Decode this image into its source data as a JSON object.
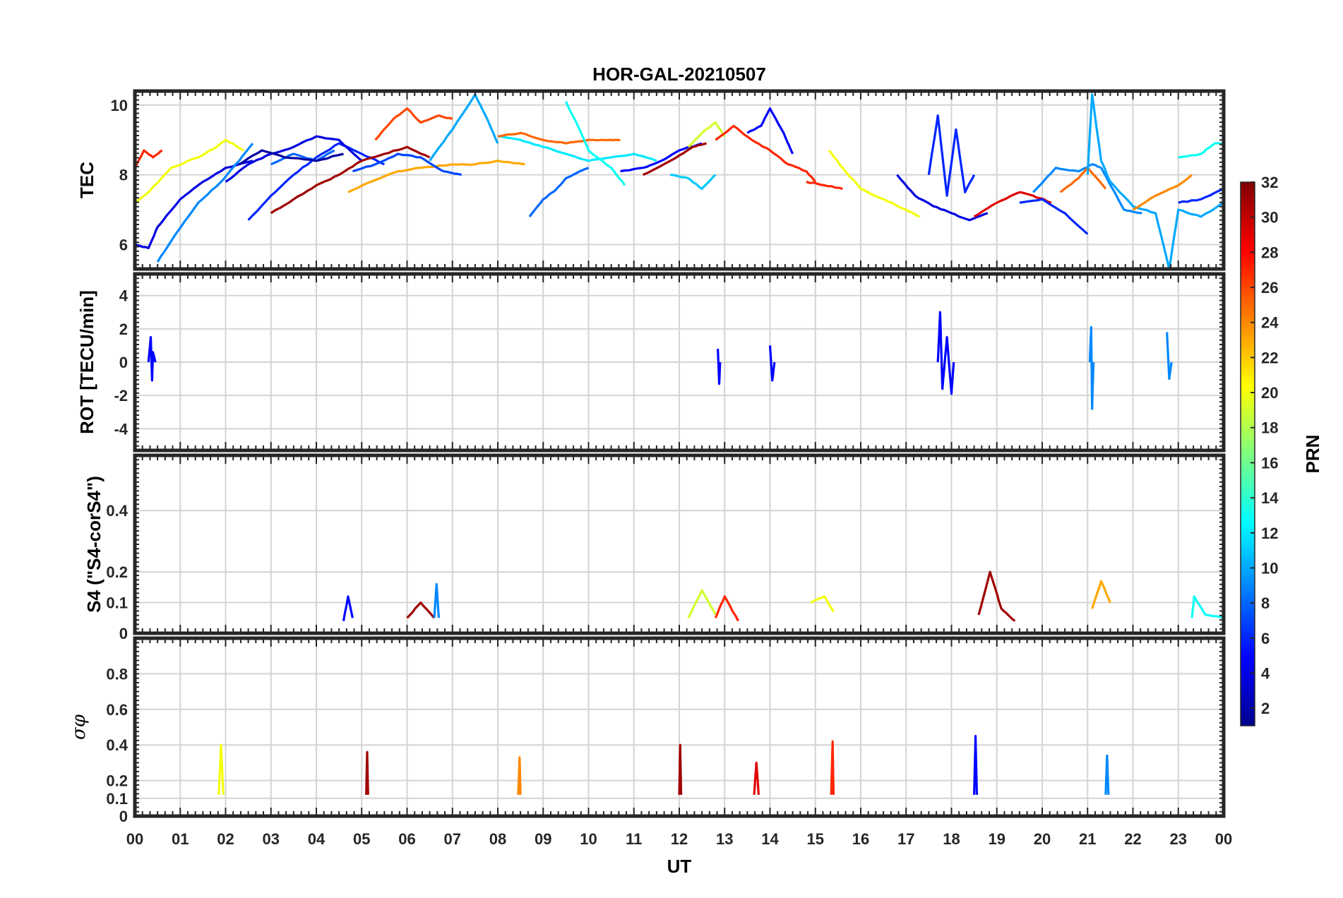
{
  "chart_data": {
    "type": "line",
    "title": "HOR-GAL-20210507",
    "xlabel": "UT",
    "xlim": [
      0,
      24
    ],
    "x_tick_labels": [
      "00",
      "01",
      "02",
      "03",
      "04",
      "05",
      "06",
      "07",
      "08",
      "09",
      "10",
      "11",
      "12",
      "13",
      "14",
      "15",
      "16",
      "17",
      "18",
      "19",
      "20",
      "21",
      "22",
      "23",
      "00"
    ],
    "colorbar": {
      "label": "PRN",
      "range": [
        1,
        32
      ],
      "tick_labels": [
        "2",
        "4",
        "6",
        "8",
        "10",
        "12",
        "14",
        "16",
        "18",
        "20",
        "22",
        "24",
        "26",
        "28",
        "30",
        "32"
      ],
      "colormap": "jet"
    },
    "panels": [
      {
        "ylabel": "TEC",
        "ylim": [
          5.3,
          10.4
        ],
        "y_tick_labels": [
          "6",
          "8",
          "10"
        ],
        "series": [
          {
            "prn": 27,
            "x": [
              0,
              0.2,
              0.4,
              0.6
            ],
            "y": [
              8.2,
              8.7,
              8.5,
              8.7
            ]
          },
          {
            "prn": 20,
            "x": [
              0,
              0.3,
              0.8,
              1.4,
              1.8,
              2.0,
              2.4
            ],
            "y": [
              7.2,
              7.5,
              8.2,
              8.5,
              8.8,
              9.0,
              8.7
            ]
          },
          {
            "prn": 4,
            "x": [
              0,
              0.3,
              0.5,
              1.0,
              1.5,
              2.0,
              2.6
            ],
            "y": [
              6.0,
              5.9,
              6.5,
              7.3,
              7.8,
              8.2,
              8.4
            ]
          },
          {
            "prn": 9,
            "x": [
              0.5,
              0.9,
              1.4,
              1.9,
              2.3,
              2.6
            ],
            "y": [
              5.5,
              6.3,
              7.2,
              7.8,
              8.4,
              8.9
            ]
          },
          {
            "prn": 6,
            "x": [
              2.5,
              3.0,
              3.5,
              4.0,
              4.5,
              5.0,
              5.5
            ],
            "y": [
              6.7,
              7.4,
              8.0,
              8.5,
              8.9,
              8.6,
              8.3
            ]
          },
          {
            "prn": 4,
            "x": [
              2.0,
              2.5,
              3.0,
              3.5,
              4.0,
              4.5,
              5.0
            ],
            "y": [
              7.8,
              8.3,
              8.6,
              8.8,
              9.1,
              9.0,
              8.4
            ]
          },
          {
            "prn": 31,
            "x": [
              3.0,
              3.5,
              4.0,
              4.5,
              5.0,
              5.5,
              6.0,
              6.5
            ],
            "y": [
              6.9,
              7.3,
              7.7,
              8.0,
              8.4,
              8.6,
              8.8,
              8.5
            ]
          },
          {
            "prn": 8,
            "x": [
              3.0,
              3.5,
              4.0,
              4.4
            ],
            "y": [
              8.3,
              8.6,
              8.4,
              8.7
            ]
          },
          {
            "prn": 2,
            "x": [
              2.3,
              2.8,
              3.3,
              4.0,
              4.6
            ],
            "y": [
              8.3,
              8.7,
              8.5,
              8.4,
              8.6
            ]
          },
          {
            "prn": 23,
            "x": [
              4.7,
              5.2,
              5.8,
              6.3,
              7.0,
              7.5,
              8.0,
              8.6
            ],
            "y": [
              7.5,
              7.8,
              8.1,
              8.2,
              8.3,
              8.3,
              8.4,
              8.3
            ]
          },
          {
            "prn": 26,
            "x": [
              5.3,
              5.7,
              6.0,
              6.3,
              6.7,
              7.0
            ],
            "y": [
              9.0,
              9.6,
              9.9,
              9.5,
              9.7,
              9.6
            ]
          },
          {
            "prn": 7,
            "x": [
              4.8,
              5.3,
              5.8,
              6.3,
              6.8,
              7.2
            ],
            "y": [
              8.1,
              8.3,
              8.6,
              8.5,
              8.1,
              8.0
            ]
          },
          {
            "prn": 10,
            "x": [
              6.5,
              7.0,
              7.5,
              7.8,
              8.0
            ],
            "y": [
              8.4,
              9.3,
              10.3,
              9.5,
              8.9
            ]
          },
          {
            "prn": 12,
            "x": [
              8.0,
              8.5,
              9.0,
              9.5,
              10.0,
              10.5,
              11.0,
              11.5
            ],
            "y": [
              9.1,
              9.0,
              8.8,
              8.6,
              8.4,
              8.5,
              8.6,
              8.4
            ]
          },
          {
            "prn": 25,
            "x": [
              8.0,
              8.5,
              9.0,
              9.5,
              10.0,
              10.5,
              10.7
            ],
            "y": [
              9.1,
              9.2,
              9.0,
              8.9,
              9.0,
              9.0,
              9.0
            ]
          },
          {
            "prn": 8,
            "x": [
              8.7,
              9.0,
              9.3,
              9.5,
              10.0
            ],
            "y": [
              6.8,
              7.3,
              7.6,
              7.9,
              8.2
            ]
          },
          {
            "prn": 13,
            "x": [
              9.5,
              9.8,
              10.0,
              10.5,
              10.8
            ],
            "y": [
              10.1,
              9.3,
              8.7,
              8.2,
              7.7
            ]
          },
          {
            "prn": 5,
            "x": [
              10.7,
              11.2,
              11.6,
              12.0,
              12.5
            ],
            "y": [
              8.1,
              8.2,
              8.4,
              8.7,
              8.9
            ]
          },
          {
            "prn": 31,
            "x": [
              11.2,
              11.8,
              12.3,
              12.6
            ],
            "y": [
              8.0,
              8.4,
              8.8,
              8.9
            ]
          },
          {
            "prn": 11,
            "x": [
              11.8,
              12.2,
              12.5,
              12.8
            ],
            "y": [
              8.0,
              7.9,
              7.6,
              8.0
            ]
          },
          {
            "prn": 19,
            "x": [
              12.2,
              12.5,
              12.8,
              13.0
            ],
            "y": [
              8.8,
              9.2,
              9.5,
              9.1
            ]
          },
          {
            "prn": 27,
            "x": [
              12.8,
              13.2,
              13.6,
              14.0,
              14.4,
              14.8,
              15.0
            ],
            "y": [
              9.0,
              9.4,
              9.0,
              8.7,
              8.3,
              8.1,
              7.8
            ]
          },
          {
            "prn": 5,
            "x": [
              13.5,
              13.8,
              14.0,
              14.3,
              14.5
            ],
            "y": [
              9.2,
              9.4,
              9.9,
              9.2,
              8.6
            ]
          },
          {
            "prn": 27,
            "x": [
              14.8,
              15.2,
              15.6
            ],
            "y": [
              7.8,
              7.7,
              7.6
            ]
          },
          {
            "prn": 20,
            "x": [
              15.3,
              15.6,
              16.0,
              16.5,
              17.0,
              17.3
            ],
            "y": [
              8.7,
              8.2,
              7.6,
              7.3,
              7.0,
              6.8
            ]
          },
          {
            "prn": 4,
            "x": [
              16.8,
              17.2,
              17.6,
              18.0,
              18.4,
              18.8
            ],
            "y": [
              8.0,
              7.4,
              7.1,
              6.9,
              6.7,
              6.9
            ]
          },
          {
            "prn": 6,
            "x": [
              17.5,
              17.7,
              17.9,
              18.1,
              18.3,
              18.5
            ],
            "y": [
              8.0,
              9.7,
              7.4,
              9.3,
              7.5,
              8.0
            ]
          },
          {
            "prn": 29,
            "x": [
              18.5,
              19.0,
              19.5,
              19.8,
              20.2
            ],
            "y": [
              6.8,
              7.2,
              7.5,
              7.4,
              7.2
            ]
          },
          {
            "prn": 6,
            "x": [
              19.5,
              20.0,
              20.5,
              21.0
            ],
            "y": [
              7.2,
              7.3,
              6.9,
              6.3
            ]
          },
          {
            "prn": 9,
            "x": [
              19.8,
              20.3,
              20.8,
              21.1,
              21.3,
              21.8,
              22.2
            ],
            "y": [
              7.5,
              8.2,
              8.1,
              8.3,
              8.2,
              7.0,
              6.9
            ]
          },
          {
            "prn": 25,
            "x": [
              20.4,
              20.8,
              21.0,
              21.4
            ],
            "y": [
              7.5,
              7.9,
              8.2,
              7.6
            ]
          },
          {
            "prn": 10,
            "x": [
              21.0,
              21.1,
              21.3,
              21.5,
              22.0,
              22.5,
              22.8,
              23.0,
              23.5,
              24.0
            ],
            "y": [
              8.0,
              10.3,
              8.4,
              7.8,
              7.1,
              6.9,
              5.3,
              7.0,
              6.8,
              7.2
            ]
          },
          {
            "prn": 24,
            "x": [
              22.0,
              22.5,
              23.0,
              23.3
            ],
            "y": [
              7.0,
              7.4,
              7.7,
              8.0
            ]
          },
          {
            "prn": 13,
            "x": [
              23.0,
              23.5,
              23.8,
              24.0
            ],
            "y": [
              8.5,
              8.6,
              8.9,
              8.9
            ]
          },
          {
            "prn": 6,
            "x": [
              23.0,
              23.5,
              24.0
            ],
            "y": [
              7.2,
              7.3,
              7.6
            ]
          }
        ]
      },
      {
        "ylabel": "ROT [TECU/min]",
        "ylim": [
          -5.3,
          5.3
        ],
        "y_tick_labels": [
          "-4",
          "-2",
          "0",
          "2",
          "4"
        ],
        "series": [
          {
            "prn": 5,
            "x": [
              0.3,
              0.35,
              0.38,
              0.4,
              0.45
            ],
            "y": [
              0,
              1.5,
              -1.1,
              0.6,
              0
            ]
          },
          {
            "prn": 5,
            "x": [
              12.85,
              12.88,
              12.9
            ],
            "y": [
              0.8,
              -1.3,
              0
            ]
          },
          {
            "prn": 5,
            "x": [
              14.0,
              14.05,
              14.1
            ],
            "y": [
              1.0,
              -1.1,
              0
            ]
          },
          {
            "prn": 5,
            "x": [
              17.7,
              17.75,
              17.8,
              17.9,
              18.0,
              18.05
            ],
            "y": [
              0,
              3.0,
              -1.6,
              1.5,
              -1.9,
              0
            ]
          },
          {
            "prn": 9,
            "x": [
              21.05,
              21.08,
              21.1,
              21.13
            ],
            "y": [
              0,
              2.1,
              -2.8,
              0
            ]
          },
          {
            "prn": 9,
            "x": [
              22.75,
              22.8,
              22.85
            ],
            "y": [
              1.8,
              -1.0,
              0
            ]
          }
        ]
      },
      {
        "ylabel": "S4 (\"S4-corS4\")",
        "ylim": [
          0,
          0.58
        ],
        "y_tick_labels": [
          "0",
          "0.1",
          "0.2",
          "0.4"
        ],
        "series": [
          {
            "prn": 5,
            "x": [
              4.6,
              4.7,
              4.8
            ],
            "y": [
              0.04,
              0.12,
              0.05
            ]
          },
          {
            "prn": 31,
            "x": [
              6.0,
              6.3,
              6.6
            ],
            "y": [
              0.05,
              0.1,
              0.05
            ]
          },
          {
            "prn": 9,
            "x": [
              6.6,
              6.65,
              6.7
            ],
            "y": [
              0.05,
              0.16,
              0.05
            ]
          },
          {
            "prn": 19,
            "x": [
              12.2,
              12.5,
              12.8
            ],
            "y": [
              0.05,
              0.14,
              0.06
            ]
          },
          {
            "prn": 27,
            "x": [
              12.8,
              13.0,
              13.3
            ],
            "y": [
              0.05,
              0.12,
              0.04
            ]
          },
          {
            "prn": 20,
            "x": [
              14.9,
              15.2,
              15.4
            ],
            "y": [
              0.1,
              0.12,
              0.07
            ]
          },
          {
            "prn": 31,
            "x": [
              18.6,
              18.85,
              19.1,
              19.4
            ],
            "y": [
              0.06,
              0.2,
              0.08,
              0.04
            ]
          },
          {
            "prn": 23,
            "x": [
              21.1,
              21.3,
              21.5
            ],
            "y": [
              0.08,
              0.17,
              0.1
            ]
          },
          {
            "prn": 13,
            "x": [
              23.3,
              23.35,
              23.6,
              24.0
            ],
            "y": [
              0.05,
              0.12,
              0.06,
              0.05
            ]
          }
        ]
      },
      {
        "ylabel": "σφ",
        "ylim": [
          0,
          1.0
        ],
        "y_tick_labels": [
          "0",
          "0.1",
          "0.2",
          "0.4",
          "0.6",
          "0.8"
        ],
        "series": [
          {
            "prn": 20,
            "x": [
              1.85,
              1.9,
              1.95
            ],
            "y": [
              0.12,
              0.4,
              0.12
            ]
          },
          {
            "prn": 31,
            "x": [
              5.1,
              5.12,
              5.14
            ],
            "y": [
              0.12,
              0.36,
              0.12
            ]
          },
          {
            "prn": 24,
            "x": [
              8.45,
              8.48,
              8.5
            ],
            "y": [
              0.12,
              0.33,
              0.12
            ]
          },
          {
            "prn": 31,
            "x": [
              12.0,
              12.02,
              12.04
            ],
            "y": [
              0.12,
              0.4,
              0.12
            ]
          },
          {
            "prn": 29,
            "x": [
              13.65,
              13.7,
              13.75
            ],
            "y": [
              0.12,
              0.3,
              0.12
            ]
          },
          {
            "prn": 27,
            "x": [
              15.35,
              15.38,
              15.4
            ],
            "y": [
              0.12,
              0.42,
              0.12
            ]
          },
          {
            "prn": 5,
            "x": [
              18.5,
              18.53,
              18.56
            ],
            "y": [
              0.12,
              0.45,
              0.12
            ]
          },
          {
            "prn": 9,
            "x": [
              21.4,
              21.43,
              21.46
            ],
            "y": [
              0.12,
              0.34,
              0.12
            ]
          }
        ]
      }
    ]
  }
}
